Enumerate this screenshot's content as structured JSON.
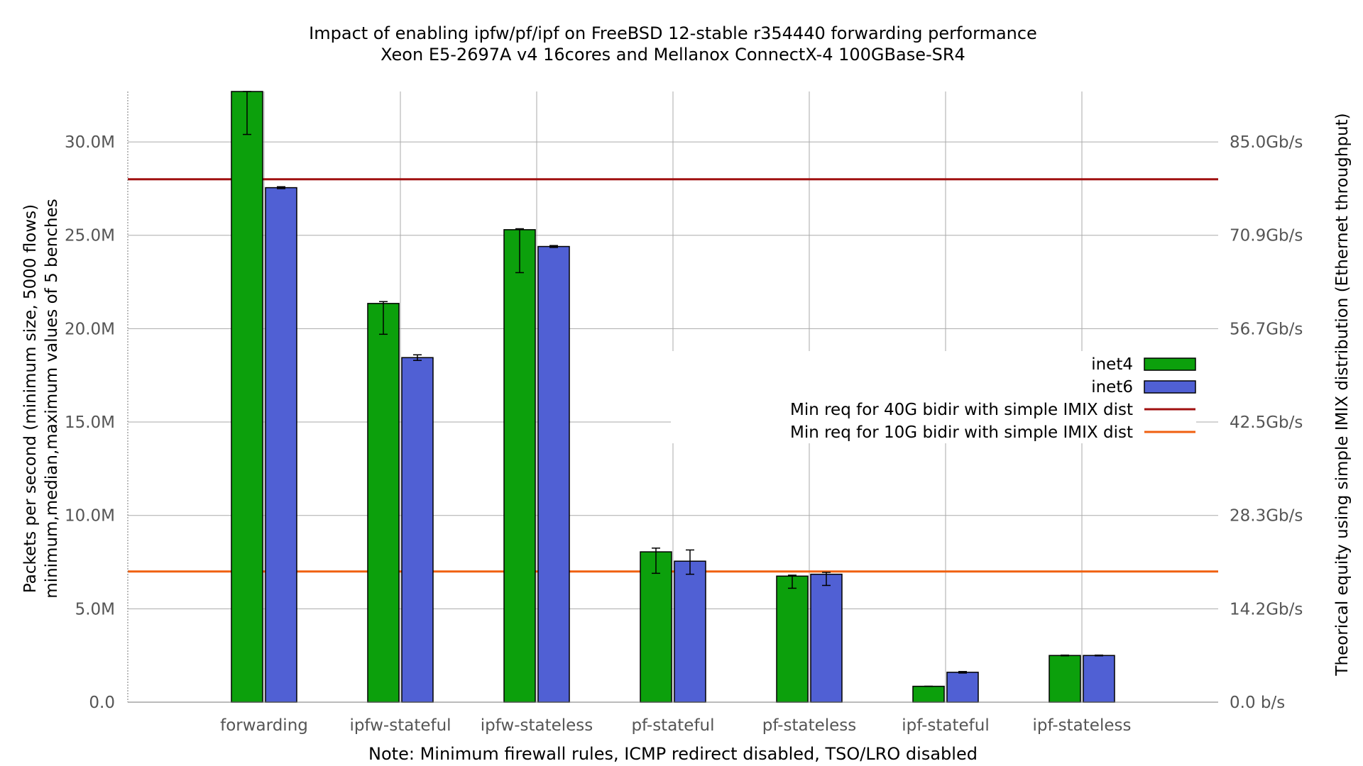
{
  "chart_data": {
    "type": "bar",
    "title": "Impact of enabling ipfw/pf/ipf on FreeBSD 12-stable r354440 forwarding performance",
    "subtitle": "Xeon E5-2697A v4 16cores and Mellanox ConnectX-4 100GBase-SR4",
    "ylabel": "Packets per second (minimum size, 5000 flows)",
    "ylabel2": "minimum,median,maximum values of 5 benches",
    "y2label": "Theorical equity using simple IMIX distribution (Ethernet throughput)",
    "xlabel": "Note: Minimum firewall rules, ICMP redirect disabled, TSO/LRO disabled",
    "categories": [
      "forwarding",
      "ipfw-stateful",
      "ipfw-stateless",
      "pf-stateful",
      "pf-stateless",
      "ipf-stateful",
      "ipf-stateless"
    ],
    "ylim": [
      0,
      32700000
    ],
    "yticks": [
      {
        "value": 0,
        "label": "0.0"
      },
      {
        "value": 5000000,
        "label": "5.0M"
      },
      {
        "value": 10000000,
        "label": "10.0M"
      },
      {
        "value": 15000000,
        "label": "15.0M"
      },
      {
        "value": 20000000,
        "label": "20.0M"
      },
      {
        "value": 25000000,
        "label": "25.0M"
      },
      {
        "value": 30000000,
        "label": "30.0M"
      }
    ],
    "y2ticks": [
      {
        "value": 0,
        "label": "0.0 b/s"
      },
      {
        "value": 5000000,
        "label": "14.2Gb/s"
      },
      {
        "value": 10000000,
        "label": "28.3Gb/s"
      },
      {
        "value": 15000000,
        "label": "42.5Gb/s"
      },
      {
        "value": 20000000,
        "label": "56.7Gb/s"
      },
      {
        "value": 25000000,
        "label": "70.9Gb/s"
      },
      {
        "value": 30000000,
        "label": "85.0Gb/s"
      }
    ],
    "series": [
      {
        "name": "inet4",
        "color": "#0ca00c",
        "values": [
          32700000,
          21350000,
          25300000,
          8050000,
          6750000,
          850000,
          2500000
        ],
        "min": [
          30400000,
          19700000,
          23000000,
          6900000,
          6100000,
          850000,
          2480000
        ],
        "max": [
          32700000,
          21450000,
          25350000,
          8250000,
          6800000,
          850000,
          2520000
        ]
      },
      {
        "name": "inet6",
        "color": "#5060d4",
        "values": [
          27550000,
          18450000,
          24400000,
          7550000,
          6850000,
          1600000,
          2500000
        ],
        "min": [
          27500000,
          18300000,
          24350000,
          6850000,
          6250000,
          1560000,
          2480000
        ],
        "max": [
          27600000,
          18600000,
          24450000,
          8150000,
          6950000,
          1640000,
          2520000
        ]
      }
    ],
    "reference_lines": [
      {
        "name": "Min req for 40G bidir with simple IMIX dist",
        "value": 28000000,
        "color": "#a01010"
      },
      {
        "name": "Min req for 10G bidir with simple IMIX dist",
        "value": 7000000,
        "color": "#f06010"
      }
    ],
    "grid": true,
    "legend_position": "right"
  }
}
